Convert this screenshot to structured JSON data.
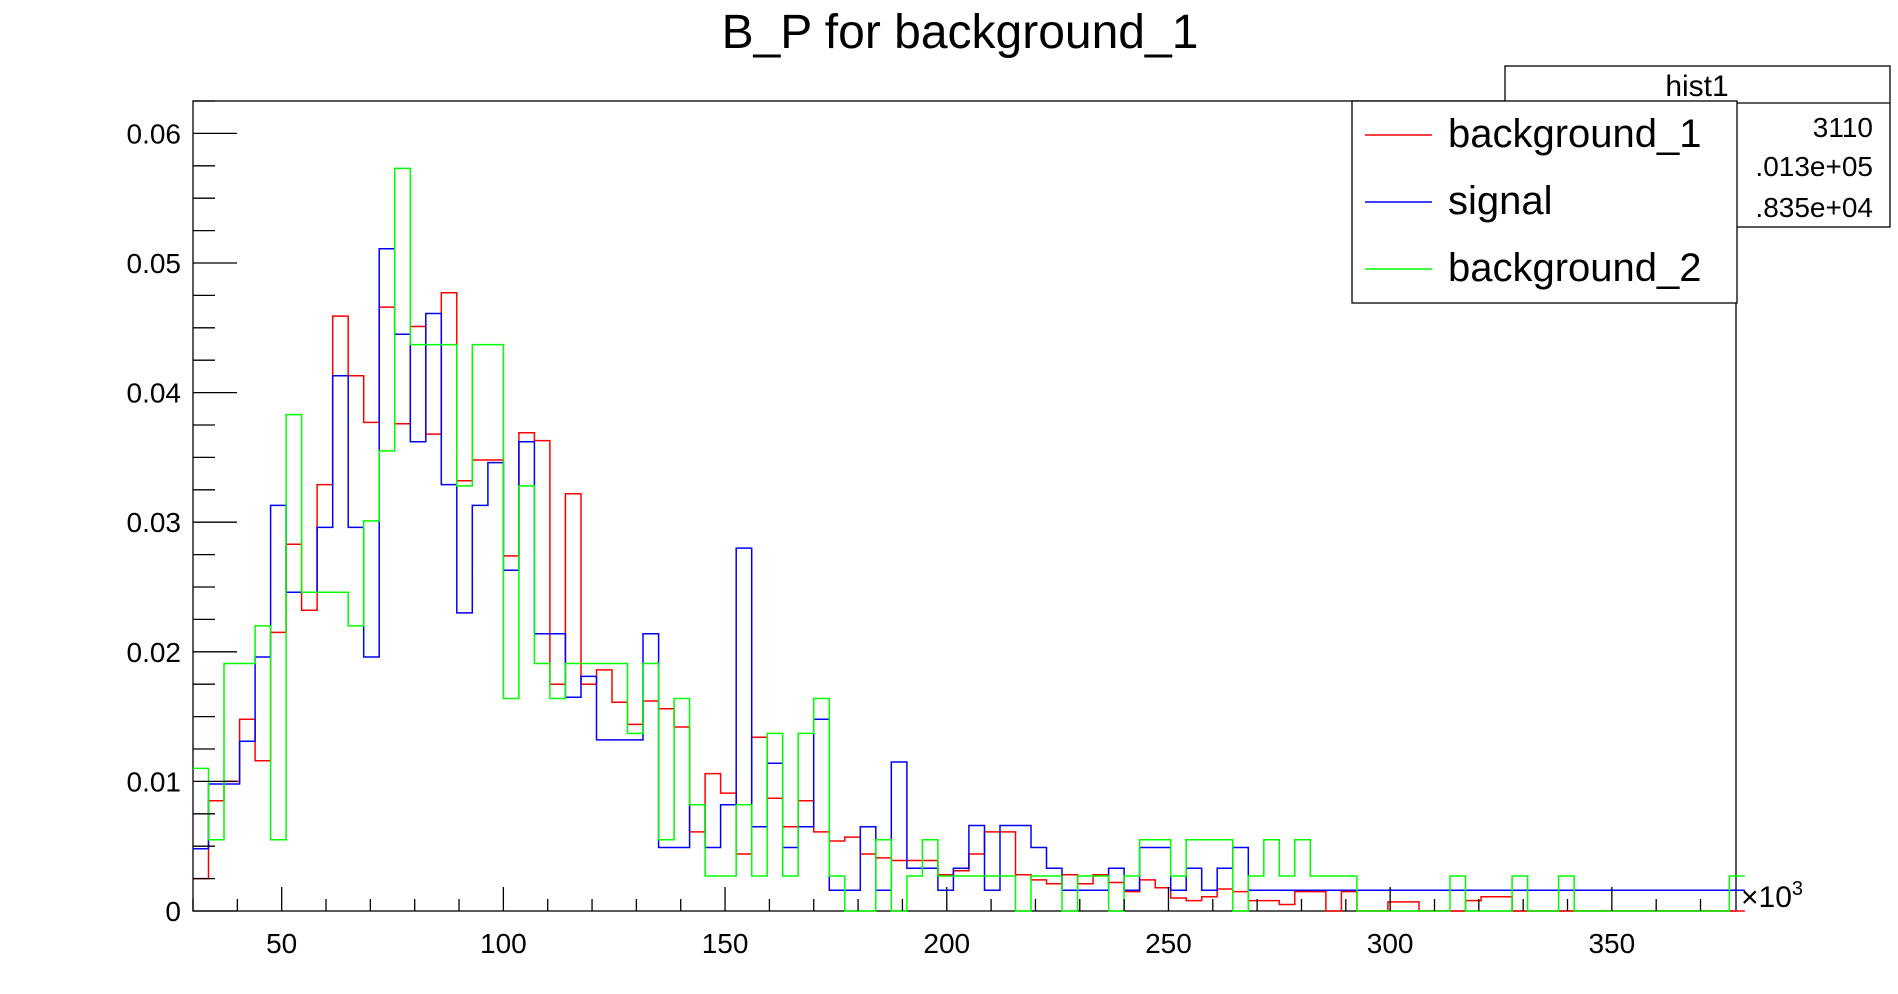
{
  "chart_data": {
    "type": "line",
    "title": "B_P for background_1",
    "xlabel": "",
    "ylabel": "",
    "x_multiplier_label": "×10",
    "x_multiplier_exp": "3",
    "xlim": [
      30,
      378
    ],
    "ylim": [
      0,
      0.0625
    ],
    "x_ticks": [
      50,
      100,
      150,
      200,
      250,
      300,
      350
    ],
    "x_tick_labels": [
      "50",
      "100",
      "150",
      "200",
      "250",
      "300",
      "350"
    ],
    "y_ticks": [
      0,
      0.01,
      0.02,
      0.03,
      0.04,
      0.05,
      0.06
    ],
    "y_tick_labels": [
      "0",
      "0.01",
      "0.02",
      "0.03",
      "0.04",
      "0.05",
      "0.06"
    ],
    "grid": false,
    "legend_position": "top-right",
    "bin_edges_start": 30,
    "bin_width": 3.5,
    "series": [
      {
        "name": "background_1",
        "color": "#ff0000",
        "values": [
          0.0025,
          0.0085,
          0.01,
          0.0148,
          0.0116,
          0.0215,
          0.0283,
          0.0232,
          0.0329,
          0.0459,
          0.0413,
          0.0377,
          0.0466,
          0.0376,
          0.0451,
          0.0368,
          0.0477,
          0.0332,
          0.0348,
          0.0348,
          0.0274,
          0.0369,
          0.0363,
          0.0175,
          0.0322,
          0.0175,
          0.0186,
          0.0161,
          0.0144,
          0.0162,
          0.0156,
          0.0142,
          0.0061,
          0.0106,
          0.0091,
          0.0044,
          0.0134,
          0.0087,
          0.0065,
          0.0085,
          0.0061,
          0.0054,
          0.0057,
          0.0044,
          0.0041,
          0.0039,
          0.0039,
          0.0039,
          0.0028,
          0.0031,
          0.0044,
          0.0061,
          0.0061,
          0.0028,
          0.0024,
          0.0021,
          0.0028,
          0.0021,
          0.0028,
          0.0022,
          0.0015,
          0.0024,
          0.0018,
          0.001,
          0.0008,
          0.0011,
          0.0017,
          0.0015,
          0.0008,
          0.0008,
          0.0005,
          0.0015,
          0.0015,
          0.0,
          0.0015,
          0.0,
          0.0,
          0.0007,
          0.0007,
          0.0,
          0.0,
          0.0,
          0.0008,
          0.0011,
          0.0011,
          0.0,
          0.0,
          0.0,
          0.0,
          0.0,
          0.0,
          0.0,
          0.0,
          0.0,
          0.0,
          0.0,
          0.0,
          0.0,
          0.0,
          0.0
        ]
      },
      {
        "name": "signal",
        "color": "#0000ff",
        "values": [
          0.0048,
          0.0098,
          0.0098,
          0.0131,
          0.0196,
          0.0313,
          0.0246,
          0.0246,
          0.0296,
          0.0413,
          0.0296,
          0.0196,
          0.0511,
          0.0445,
          0.0362,
          0.0461,
          0.0329,
          0.023,
          0.0313,
          0.0346,
          0.0263,
          0.0362,
          0.0214,
          0.0214,
          0.0165,
          0.0181,
          0.0132,
          0.0132,
          0.0132,
          0.0214,
          0.0049,
          0.0049,
          0.0082,
          0.0049,
          0.0082,
          0.028,
          0.0065,
          0.0114,
          0.0049,
          0.0065,
          0.0148,
          0.0016,
          0.0016,
          0.0065,
          0.0016,
          0.0115,
          0.0033,
          0.0033,
          0.0016,
          0.0033,
          0.0066,
          0.0016,
          0.0066,
          0.0066,
          0.0049,
          0.0033,
          0.0016,
          0.0016,
          0.0016,
          0.0033,
          0.0016,
          0.0049,
          0.0049,
          0.0016,
          0.0033,
          0.0016,
          0.0033,
          0.0049,
          0.0016,
          0.0016,
          0.0016,
          0.0016,
          0.0016,
          0.0016,
          0.0016,
          0.0016,
          0.0016,
          0.0016,
          0.0016,
          0.0016,
          0.0016,
          0.0016,
          0.0016,
          0.0016,
          0.0016,
          0.0016,
          0.0016,
          0.0016,
          0.0016,
          0.0016,
          0.0016,
          0.0016,
          0.0016,
          0.0016,
          0.0016,
          0.0016,
          0.0016,
          0.0016,
          0.0016,
          0.0016
        ]
      },
      {
        "name": "background_2",
        "color": "#00ff00",
        "values": [
          0.011,
          0.0055,
          0.0191,
          0.0191,
          0.022,
          0.0055,
          0.0383,
          0.0246,
          0.0246,
          0.0246,
          0.022,
          0.0301,
          0.0355,
          0.0573,
          0.0437,
          0.0437,
          0.0437,
          0.0328,
          0.0437,
          0.0437,
          0.0164,
          0.0328,
          0.0191,
          0.0164,
          0.0191,
          0.0191,
          0.0191,
          0.0191,
          0.0137,
          0.0191,
          0.0055,
          0.0164,
          0.0082,
          0.0027,
          0.0027,
          0.0082,
          0.0027,
          0.0137,
          0.0027,
          0.0137,
          0.0164,
          0.0027,
          0.0,
          0.0,
          0.0055,
          0.0,
          0.0027,
          0.0055,
          0.0027,
          0.0027,
          0.0027,
          0.0027,
          0.0027,
          0.0,
          0.0027,
          0.0027,
          0.0,
          0.0027,
          0.0027,
          0.0,
          0.0027,
          0.0055,
          0.0055,
          0.0027,
          0.0055,
          0.0055,
          0.0055,
          0.0,
          0.0027,
          0.0055,
          0.0027,
          0.0055,
          0.0027,
          0.0027,
          0.0027,
          0.0,
          0.0,
          0.0,
          0.0,
          0.0,
          0.0,
          0.0027,
          0.0,
          0.0,
          0.0,
          0.0027,
          0.0,
          0.0,
          0.0027,
          0.0,
          0.0,
          0.0,
          0.0,
          0.0,
          0.0,
          0.0,
          0.0,
          0.0,
          0.0,
          0.0027
        ]
      }
    ]
  },
  "stats_box": {
    "title": "hist1",
    "rows": [
      "3110",
      ".013e+05",
      ".835e+04"
    ]
  }
}
